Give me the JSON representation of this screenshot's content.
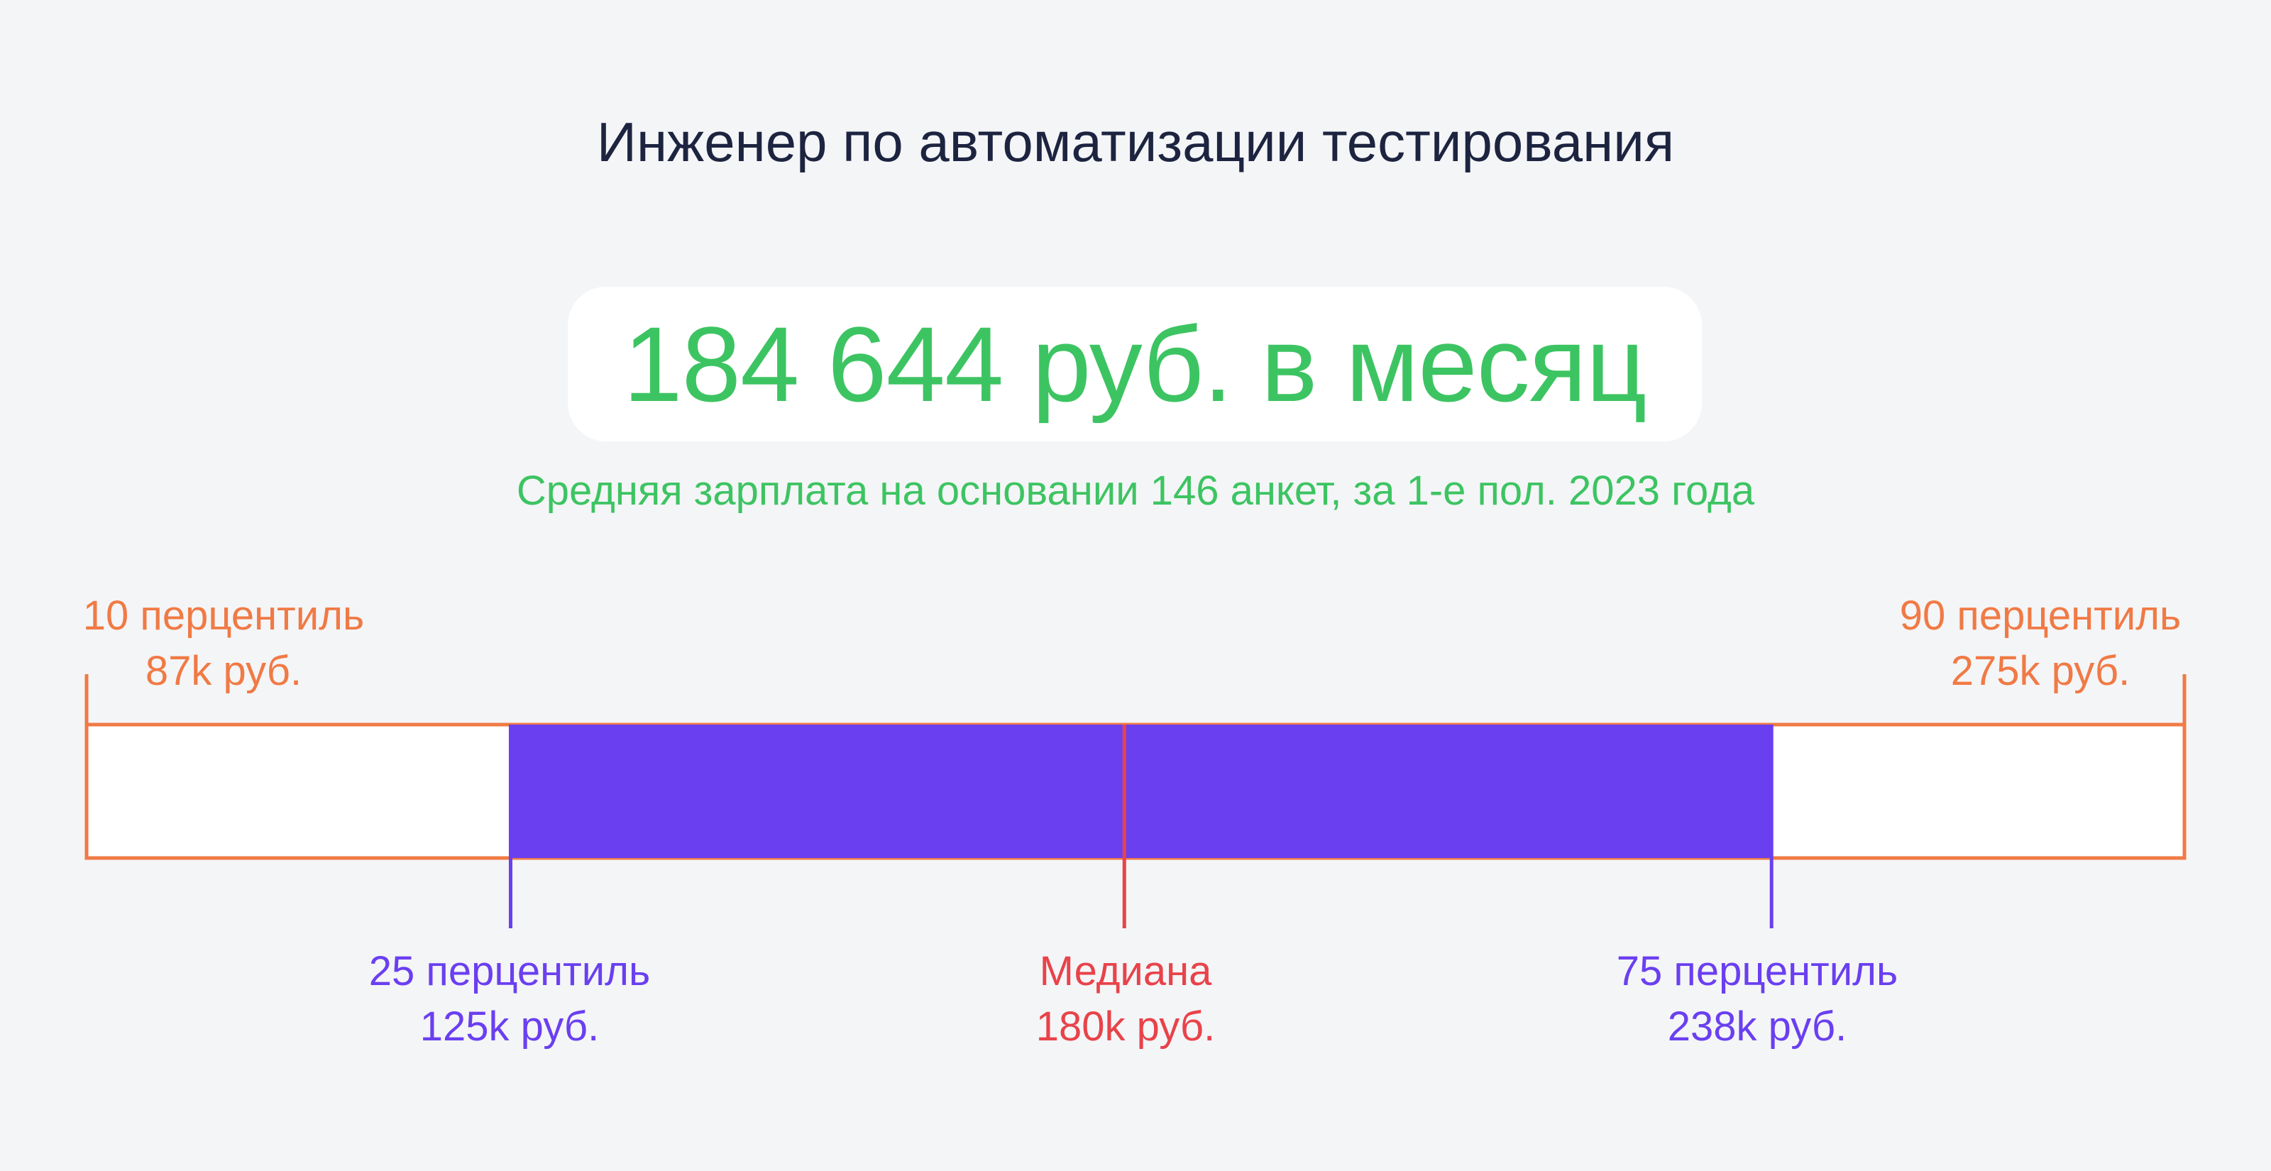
{
  "title": "Инженер по автоматизации тестирования",
  "salary": "184 644 руб. в месяц",
  "subtitle": "Средняя зарплата на основании 146 анкет, за 1-е пол. 2023 года",
  "colors": {
    "background": "#f4f5f7",
    "title": "#1d2440",
    "green": "#3dc462",
    "orange": "#f07a45",
    "purple": "#6a3ff0",
    "red": "#e8434a",
    "white": "#ffffff"
  },
  "chart_data": {
    "type": "box",
    "domain_k": [
      87,
      275
    ],
    "values": {
      "p10": 87,
      "p25": 125,
      "median": 180,
      "p75": 238,
      "p90": 275
    },
    "labels": {
      "p10": {
        "name": "10 перцентиль",
        "value": "87k руб."
      },
      "p25": {
        "name": "25 перцентиль",
        "value": "125k руб."
      },
      "median": {
        "name": "Медиана",
        "value": "180k руб."
      },
      "p75": {
        "name": "75 перцентиль",
        "value": "238k руб."
      },
      "p90": {
        "name": "90 перцентиль",
        "value": "275k руб."
      }
    }
  }
}
